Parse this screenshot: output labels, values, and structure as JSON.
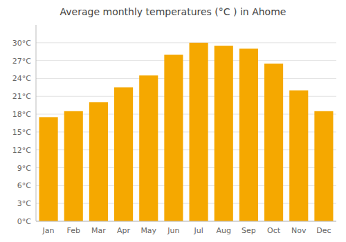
{
  "chart_data": {
    "type": "bar",
    "title": "Average monthly temperatures (°C ) in Ahome",
    "categories": [
      "Jan",
      "Feb",
      "Mar",
      "Apr",
      "May",
      "Jun",
      "Jul",
      "Aug",
      "Sep",
      "Oct",
      "Nov",
      "Dec"
    ],
    "values": [
      17.5,
      18.5,
      20.0,
      22.5,
      24.5,
      28.0,
      30.0,
      29.5,
      29.0,
      26.5,
      22.0,
      18.5
    ],
    "color": "#F5A800",
    "ylim": [
      0,
      33
    ],
    "yticks": [
      {
        "value": 0,
        "label": "0°C"
      },
      {
        "value": 3,
        "label": "3°C"
      },
      {
        "value": 6,
        "label": "6°C"
      },
      {
        "value": 9,
        "label": "9°C"
      },
      {
        "value": 12,
        "label": "12°C"
      },
      {
        "value": 15,
        "label": "15°C"
      },
      {
        "value": 18,
        "label": "18°C"
      },
      {
        "value": 21,
        "label": "21°C"
      },
      {
        "value": 24,
        "label": "24°C"
      },
      {
        "value": 27,
        "label": "27°C"
      },
      {
        "value": 30,
        "label": "30°C"
      }
    ],
    "grid": true
  }
}
